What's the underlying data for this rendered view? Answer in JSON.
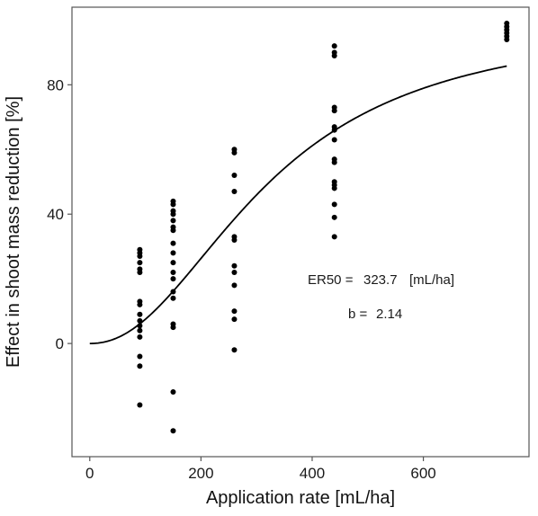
{
  "chart_data": {
    "type": "scatter",
    "xlabel": "Application rate [mL/ha]",
    "ylabel": "Effect in shoot mass reduction [%]",
    "xlim": [
      -32,
      790
    ],
    "ylim": [
      -35,
      104
    ],
    "xticks": [
      0,
      200,
      400,
      600
    ],
    "yticks": [
      0,
      40,
      80
    ],
    "grid": false,
    "annotations": [
      {
        "text_left": "ER50 =",
        "value": "323.7",
        "unit": "[mL/ha]"
      },
      {
        "text_left": "b =",
        "value": "2.14"
      }
    ],
    "series": [
      {
        "kind": "points",
        "x": [
          90,
          90,
          90,
          90,
          90,
          90,
          90,
          90,
          90,
          90,
          90,
          90,
          90,
          90,
          90,
          90,
          150,
          150,
          150,
          150,
          150,
          150,
          150,
          150,
          150,
          150,
          150,
          150,
          150,
          150,
          150,
          150,
          150,
          150,
          260,
          260,
          260,
          260,
          260,
          260,
          260,
          260,
          260,
          260,
          260,
          260,
          440,
          440,
          440,
          440,
          440,
          440,
          440,
          440,
          440,
          440,
          440,
          440,
          440,
          440,
          440,
          440,
          750,
          750,
          750,
          750,
          750,
          750
        ],
        "y": [
          29,
          28,
          27,
          25,
          23,
          22,
          13,
          12,
          7,
          5.5,
          4,
          2,
          -4,
          -7,
          -19,
          9,
          44,
          43,
          41,
          40,
          36,
          35,
          31,
          28,
          25,
          22,
          20,
          14,
          6,
          5,
          -15,
          -27,
          38,
          16,
          60,
          59,
          52,
          47,
          33,
          32,
          24,
          22,
          18,
          10,
          7.5,
          -2,
          92,
          90,
          89,
          73,
          72,
          67,
          63,
          57,
          56,
          50,
          49,
          48,
          43,
          39,
          33,
          66,
          99,
          97,
          96,
          95,
          94,
          98
        ]
      },
      {
        "kind": "fitted_curve",
        "model": "log-logistic",
        "ER50": 323.7,
        "b": 2.14,
        "upper": 100,
        "x_range": [
          0,
          750
        ]
      }
    ]
  }
}
